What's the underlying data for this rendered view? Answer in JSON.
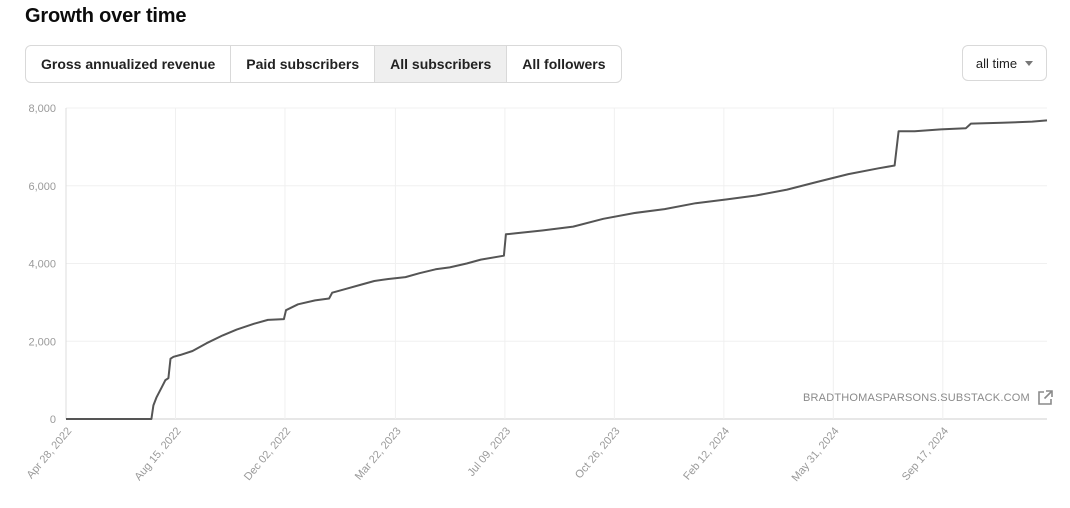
{
  "page": {
    "title": "Growth over time"
  },
  "tabs": [
    {
      "label": "Gross annualized revenue",
      "active": false
    },
    {
      "label": "Paid subscribers",
      "active": false
    },
    {
      "label": "All subscribers",
      "active": true
    },
    {
      "label": "All followers",
      "active": false
    }
  ],
  "range_select": {
    "value": "all time",
    "icon": "chevron-down-icon"
  },
  "watermark": {
    "text": "BRADTHOMASPARSONS.SUBSTACK.COM",
    "icon": "external-link-icon"
  },
  "colors": {
    "line": "#555555",
    "grid": "#f0f0f0",
    "axis_text": "#9a9a9a",
    "active_tab": "#efefef"
  },
  "chart_data": {
    "type": "line",
    "xlabel": "",
    "ylabel": "",
    "ylim": [
      0,
      8000
    ],
    "y_ticks": [
      "0",
      "2,000",
      "4,000",
      "6,000",
      "8,000"
    ],
    "y_tick_values": [
      0,
      2000,
      4000,
      6000,
      8000
    ],
    "x_ticks": [
      "Apr 28, 2022",
      "Aug 15, 2022",
      "Dec 02, 2022",
      "Mar 22, 2023",
      "Jul 09, 2023",
      "Oct 26, 2023",
      "Feb 12, 2024",
      "May 31, 2024",
      "Sep 17, 2024"
    ],
    "grid": true,
    "series": [
      {
        "x": [
          "2022-04-28",
          "2022-07-01",
          "2022-07-22",
          "2022-07-24",
          "2022-07-27",
          "2022-08-01",
          "2022-08-05",
          "2022-08-08",
          "2022-08-10",
          "2022-08-13",
          "2022-08-20",
          "2022-09-01",
          "2022-09-15",
          "2022-10-01",
          "2022-10-15",
          "2022-11-01",
          "2022-11-15",
          "2022-12-01",
          "2022-12-03",
          "2022-12-15",
          "2023-01-01",
          "2023-01-15",
          "2023-01-18",
          "2023-02-01",
          "2023-02-15",
          "2023-03-01",
          "2023-03-15",
          "2023-04-01",
          "2023-04-15",
          "2023-05-01",
          "2023-05-15",
          "2023-06-01",
          "2023-06-15",
          "2023-07-08",
          "2023-07-10",
          "2023-07-20",
          "2023-08-15",
          "2023-09-15",
          "2023-10-15",
          "2023-11-15",
          "2023-12-15",
          "2024-01-15",
          "2024-02-15",
          "2024-03-15",
          "2024-04-15",
          "2024-05-15",
          "2024-06-15",
          "2024-07-15",
          "2024-07-31",
          "2024-08-04",
          "2024-08-20",
          "2024-09-15",
          "2024-10-10",
          "2024-10-15",
          "2024-11-15",
          "2024-12-15",
          "2025-01-05"
        ],
        "values": [
          0,
          0,
          0,
          350,
          550,
          800,
          1000,
          1050,
          1550,
          1600,
          1650,
          1750,
          1950,
          2150,
          2300,
          2450,
          2550,
          2570,
          2800,
          2950,
          3050,
          3100,
          3250,
          3350,
          3450,
          3550,
          3600,
          3650,
          3750,
          3850,
          3900,
          4000,
          4100,
          4200,
          4750,
          4780,
          4850,
          4950,
          5150,
          5300,
          5400,
          5550,
          5650,
          5750,
          5900,
          6100,
          6300,
          6450,
          6520,
          7400,
          7400,
          7450,
          7480,
          7600,
          7620,
          7650,
          7680
        ]
      }
    ]
  }
}
